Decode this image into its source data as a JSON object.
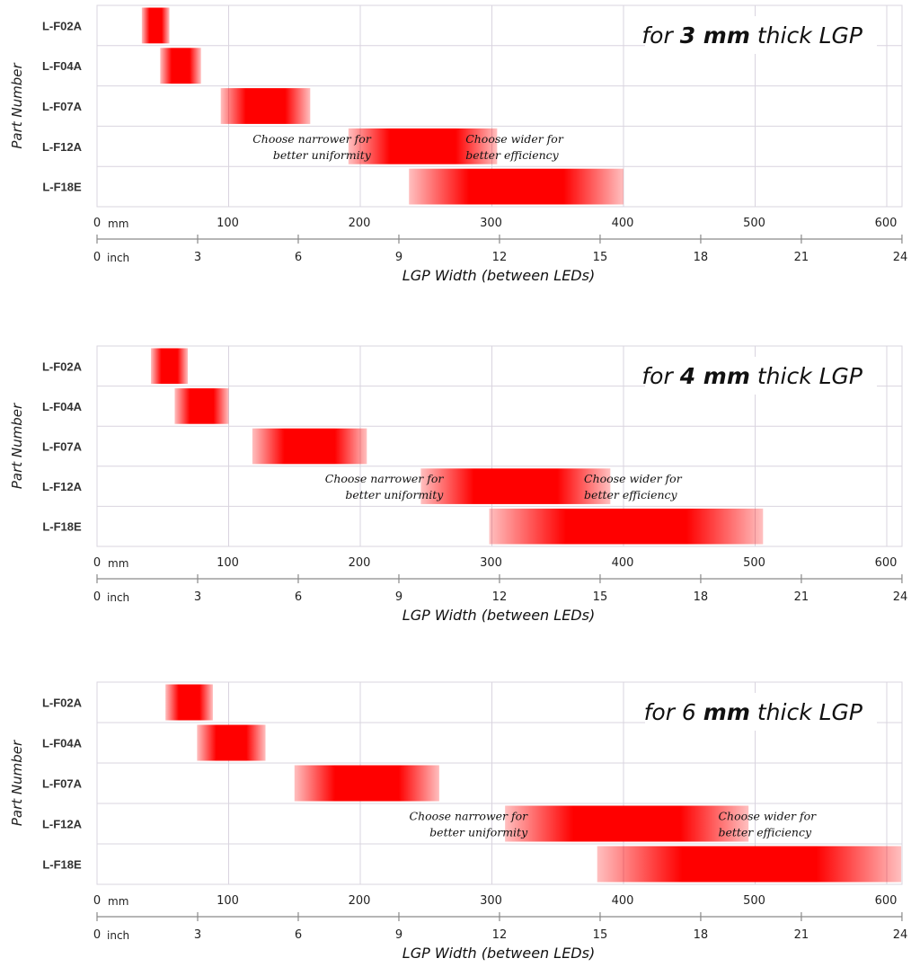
{
  "chart_data": [
    {
      "type": "bar",
      "subtype": "floating-range-gantt",
      "title": {
        "prefix": "for ",
        "bold": "3 mm",
        "suffix": " thick LGP"
      },
      "ylabel": "Part Number",
      "xlabel": "LGP Width (between LEDs)",
      "x_primary": {
        "unit": "mm",
        "ticks": [
          0,
          100,
          200,
          300,
          400,
          500,
          600
        ],
        "lim": [
          0,
          600
        ]
      },
      "x_secondary": {
        "unit": "inch",
        "ticks": [
          0,
          3,
          6,
          9,
          12,
          15,
          18,
          21,
          24
        ]
      },
      "categories": [
        "L-F02A",
        "L-F04A",
        "L-F07A",
        "L-F12A",
        "L-F18E"
      ],
      "ranges_mm": [
        [
          34,
          55
        ],
        [
          48,
          79
        ],
        [
          94,
          162
        ],
        [
          191,
          304
        ],
        [
          237,
          400
        ]
      ],
      "annotations": [
        {
          "lines": [
            "Choose narrower for",
            "better uniformity"
          ],
          "at_mm": 191,
          "row": "L-F12A",
          "align": "end"
        },
        {
          "lines": [
            "Choose wider for",
            "better efficiency"
          ],
          "at_mm": 280,
          "row": "L-F12A",
          "align": "start"
        }
      ]
    },
    {
      "type": "bar",
      "subtype": "floating-range-gantt",
      "title": {
        "prefix": "for ",
        "bold": "4 mm",
        "suffix": " thick LGP"
      },
      "ylabel": "Part Number",
      "xlabel": "LGP Width (between LEDs)",
      "x_primary": {
        "unit": "mm",
        "ticks": [
          0,
          100,
          200,
          300,
          400,
          500,
          600
        ],
        "lim": [
          0,
          600
        ]
      },
      "x_secondary": {
        "unit": "inch",
        "ticks": [
          0,
          3,
          6,
          9,
          12,
          15,
          18,
          21,
          24
        ]
      },
      "categories": [
        "L-F02A",
        "L-F04A",
        "L-F07A",
        "L-F12A",
        "L-F18E"
      ],
      "ranges_mm": [
        [
          41,
          69
        ],
        [
          59,
          100
        ],
        [
          118,
          205
        ],
        [
          246,
          390
        ],
        [
          298,
          506
        ]
      ],
      "annotations": [
        {
          "lines": [
            "Choose narrower for",
            "better uniformity"
          ],
          "at_mm": 246,
          "row": "L-F12A",
          "align": "end"
        },
        {
          "lines": [
            "Choose wider for",
            "better efficiency"
          ],
          "at_mm": 370,
          "row": "L-F12A",
          "align": "start"
        }
      ]
    },
    {
      "type": "bar",
      "subtype": "floating-range-gantt",
      "title": {
        "prefix": "for 6 ",
        "bold": "mm",
        "suffix": " thick LGP"
      },
      "ylabel": "Part Number",
      "xlabel": "LGP Width (between LEDs)",
      "x_primary": {
        "unit": "mm",
        "ticks": [
          0,
          100,
          200,
          300,
          400,
          500,
          600
        ],
        "lim": [
          0,
          600
        ]
      },
      "x_secondary": {
        "unit": "inch",
        "ticks": [
          0,
          3,
          6,
          9,
          12,
          15,
          18,
          21,
          24
        ]
      },
      "categories": [
        "L-F02A",
        "L-F04A",
        "L-F07A",
        "L-F12A",
        "L-F18E"
      ],
      "ranges_mm": [
        [
          52,
          88
        ],
        [
          76,
          128
        ],
        [
          150,
          260
        ],
        [
          310,
          495
        ],
        [
          380,
          611
        ]
      ],
      "annotations": [
        {
          "lines": [
            "Choose narrower for",
            "better uniformity"
          ],
          "at_mm": 310,
          "row": "L-F12A",
          "align": "end"
        },
        {
          "lines": [
            "Choose wider for",
            "better efficiency"
          ],
          "at_mm": 472,
          "row": "L-F12A",
          "align": "start"
        }
      ]
    }
  ],
  "colors": {
    "bar": "#ff0000",
    "grid": "#d9d4df",
    "text": "#222222"
  }
}
